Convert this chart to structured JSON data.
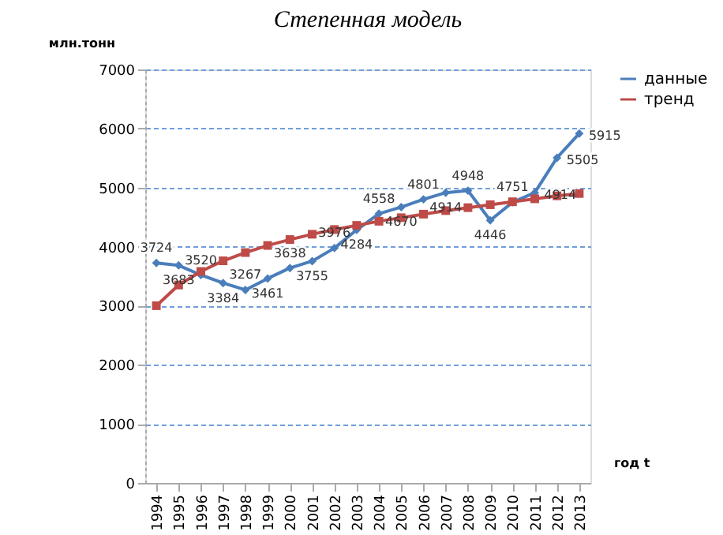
{
  "chart_data": {
    "type": "line",
    "title": "Степенная модель",
    "ylabel": "млн.тонн",
    "xlabel": "год t",
    "categories": [
      "1994",
      "1995",
      "1996",
      "1997",
      "1998",
      "1999",
      "2000",
      "2001",
      "2002",
      "2003",
      "2004",
      "2005",
      "2006",
      "2007",
      "2008",
      "2009",
      "2010",
      "2011",
      "2012",
      "2013"
    ],
    "series": [
      {
        "name": "данные",
        "color": "#4a7ebb",
        "marker": "diamond",
        "values": [
          3724,
          3683,
          3520,
          3384,
          3267,
          3461,
          3638,
          3755,
          3976,
          4284,
          4558,
          4670,
          4801,
          4914,
          4948,
          4446,
          4751,
          4914,
          5505,
          5915
        ],
        "value_labels": [
          "3724",
          "3683",
          "3520",
          "3384",
          "3267",
          "3461",
          "3638",
          "3755",
          "3976",
          "4284",
          "4558",
          "4670",
          "4801",
          "4914",
          "4948",
          "4446",
          "4751",
          "4914",
          "5505",
          "5915"
        ]
      },
      {
        "name": "тренд",
        "color": "#be4b48",
        "marker": "square",
        "values": [
          3000,
          3350,
          3580,
          3760,
          3900,
          4020,
          4120,
          4210,
          4290,
          4360,
          4430,
          4490,
          4550,
          4610,
          4660,
          4710,
          4760,
          4810,
          4860,
          4900
        ]
      }
    ],
    "ylim": [
      0,
      7000
    ],
    "yticks": [
      0,
      1000,
      2000,
      3000,
      4000,
      5000,
      6000,
      7000
    ],
    "grid": "y",
    "legend": "right",
    "line_style": "solid"
  }
}
